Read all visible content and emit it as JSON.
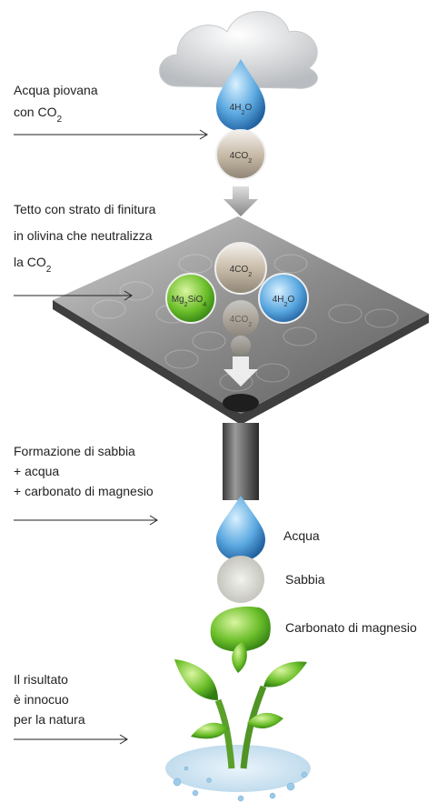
{
  "steps": [
    {
      "lines": [
        [
          "Acqua piovana"
        ],
        [
          "con CO",
          "2"
        ]
      ]
    },
    {
      "lines": [
        [
          "Tetto con strato di finitura"
        ],
        [
          "in olivina che neutralizza"
        ],
        [
          "la CO",
          "2"
        ]
      ]
    },
    {
      "lines": [
        [
          "Formazione di sabbia"
        ],
        [
          "+ acqua"
        ],
        [
          "+ carbonato di magnesio"
        ]
      ]
    },
    {
      "lines": [
        [
          "Il risultato"
        ],
        [
          "è innocuo"
        ],
        [
          "per la natura"
        ]
      ]
    }
  ],
  "molecules": [
    {
      "formula": [
        "4H",
        "2",
        "O"
      ]
    },
    {
      "formula": [
        "4CO",
        "2"
      ]
    },
    {
      "formula": [
        "4CO",
        "2"
      ]
    },
    {
      "formula": [
        "Mg",
        "2",
        "SiO",
        "4"
      ]
    },
    {
      "formula": [
        "4H",
        "2",
        "O"
      ]
    },
    {
      "formula": [
        "4CO",
        "2"
      ]
    }
  ],
  "products": [
    "Acqua",
    "Sabbia",
    "Carbonato di magnesio"
  ]
}
